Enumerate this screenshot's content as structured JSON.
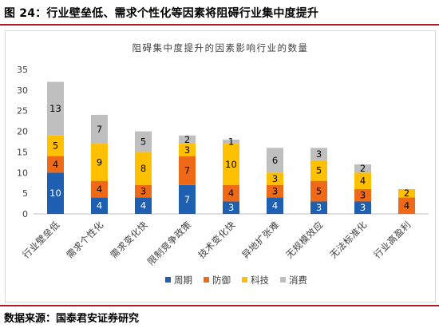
{
  "figure": {
    "title": "图 24：行业壁垒低、需求个性化等因素将阻碍行业集中度提升",
    "source": "数据来源：国泰君安证券研究"
  },
  "colors": {
    "accent_rule": "#b01e23",
    "series": [
      "#1f5fb2",
      "#ef6a16",
      "#ffc000",
      "#bfbfbf"
    ]
  },
  "chart_data": {
    "type": "bar",
    "stacked": true,
    "title": "阻碍集中度提升的因素影响行业的数量",
    "xlabel": "",
    "ylabel": "",
    "ylim": [
      0,
      35
    ],
    "yticks": [
      0,
      5,
      10,
      15,
      20,
      25,
      30,
      35
    ],
    "grid": false,
    "legend_position": "bottom",
    "categories": [
      "行业壁垒低",
      "需求个性化",
      "需求变化快",
      "限制竞争政策",
      "技术变化快",
      "异地扩张难",
      "无规模效应",
      "无法标准化",
      "行业高盈利"
    ],
    "series": [
      {
        "name": "周期",
        "color": "#1f5fb2",
        "label_color": "#ffffff",
        "values": [
          10,
          4,
          4,
          7,
          3,
          4,
          3,
          3,
          0
        ]
      },
      {
        "name": "防御",
        "color": "#ef6a16",
        "label_color": "#000000",
        "values": [
          4,
          4,
          3,
          7,
          4,
          3,
          5,
          3,
          4
        ]
      },
      {
        "name": "科技",
        "color": "#ffc000",
        "label_color": "#000000",
        "values": [
          5,
          9,
          8,
          3,
          10,
          3,
          5,
          4,
          2
        ]
      },
      {
        "name": "消费",
        "color": "#bfbfbf",
        "label_color": "#000000",
        "values": [
          13,
          7,
          5,
          2,
          1,
          6,
          3,
          2,
          0
        ]
      }
    ]
  }
}
